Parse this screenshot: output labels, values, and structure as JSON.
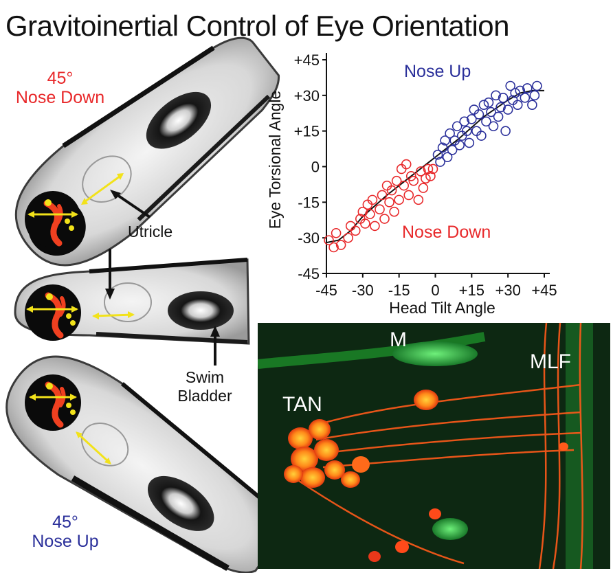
{
  "title": "Gravitoinertial Control of Eye Orientation",
  "fish_panels": {
    "top": {
      "line1": "45°",
      "line2": "Nose Down",
      "color": "#e8282a"
    },
    "bottom": {
      "line1": "45°",
      "line2": "Nose Up",
      "color": "#2a2f9a"
    },
    "utricle_label": "Utricle",
    "swim_bladder_label_1": "Swim",
    "swim_bladder_label_2": "Bladder"
  },
  "chart_data": {
    "type": "scatter",
    "xlabel": "Head Tilt Angle",
    "ylabel": "Eye Torsional Angle",
    "xlim": [
      -45,
      45
    ],
    "ylim": [
      -45,
      45
    ],
    "x_ticks": [
      "-45",
      "-30",
      "-15",
      "0",
      "+15",
      "+30",
      "+45"
    ],
    "y_ticks": [
      "+45",
      "+30",
      "+15",
      "0",
      "-15",
      "-30",
      "-45"
    ],
    "annotations": {
      "nose_up": "Nose Up",
      "nose_down": "Nose Down"
    },
    "series": [
      {
        "name": "Nose Down",
        "color": "#e8282a",
        "points": [
          [
            -44,
            -31
          ],
          [
            -42,
            -34
          ],
          [
            -41,
            -28
          ],
          [
            -39,
            -33
          ],
          [
            -36,
            -30
          ],
          [
            -35,
            -25
          ],
          [
            -33,
            -27
          ],
          [
            -31,
            -22
          ],
          [
            -30,
            -19
          ],
          [
            -29,
            -24
          ],
          [
            -28,
            -16
          ],
          [
            -27,
            -20
          ],
          [
            -26,
            -14
          ],
          [
            -25,
            -25
          ],
          [
            -23,
            -18
          ],
          [
            -22,
            -12
          ],
          [
            -21,
            -22
          ],
          [
            -20,
            -8
          ],
          [
            -19,
            -15
          ],
          [
            -18,
            -10
          ],
          [
            -17,
            -19
          ],
          [
            -16,
            -6
          ],
          [
            -15,
            -14
          ],
          [
            -14,
            -1
          ],
          [
            -13,
            -8
          ],
          [
            -12,
            1
          ],
          [
            -11,
            -12
          ],
          [
            -10,
            -4
          ],
          [
            -9,
            -6
          ],
          [
            -7,
            -14
          ],
          [
            -6,
            -2
          ],
          [
            -5,
            -9
          ],
          [
            -4,
            -5
          ],
          [
            -3,
            -1
          ],
          [
            -2,
            -4
          ],
          [
            -1,
            -1
          ]
        ]
      },
      {
        "name": "Nose Up",
        "color": "#2a2f9a",
        "points": [
          [
            1,
            5
          ],
          [
            2,
            2
          ],
          [
            3,
            8
          ],
          [
            4,
            11
          ],
          [
            5,
            4
          ],
          [
            6,
            14
          ],
          [
            7,
            7
          ],
          [
            8,
            11
          ],
          [
            9,
            17
          ],
          [
            10,
            9
          ],
          [
            11,
            13
          ],
          [
            12,
            19
          ],
          [
            13,
            15
          ],
          [
            14,
            10
          ],
          [
            15,
            20
          ],
          [
            16,
            24
          ],
          [
            17,
            15
          ],
          [
            18,
            22
          ],
          [
            19,
            13
          ],
          [
            20,
            26
          ],
          [
            21,
            19
          ],
          [
            22,
            27
          ],
          [
            23,
            23
          ],
          [
            24,
            17
          ],
          [
            25,
            30
          ],
          [
            26,
            21
          ],
          [
            27,
            25
          ],
          [
            28,
            29
          ],
          [
            29,
            15
          ],
          [
            30,
            24
          ],
          [
            31,
            34
          ],
          [
            32,
            28
          ],
          [
            33,
            31
          ],
          [
            34,
            26
          ],
          [
            35,
            32
          ],
          [
            37,
            29
          ],
          [
            38,
            33
          ],
          [
            40,
            26
          ],
          [
            41,
            30
          ],
          [
            42,
            34
          ]
        ]
      }
    ],
    "fit_curve": [
      [
        -45,
        -32
      ],
      [
        -40,
        -31
      ],
      [
        -35,
        -27
      ],
      [
        -30,
        -21
      ],
      [
        -20,
        -12
      ],
      [
        -10,
        -4
      ],
      [
        0,
        4
      ],
      [
        10,
        12
      ],
      [
        20,
        21
      ],
      [
        30,
        28
      ],
      [
        35,
        31
      ],
      [
        40,
        32
      ],
      [
        45,
        32
      ]
    ]
  },
  "micrograph": {
    "label_m": "M",
    "label_mlf": "MLF",
    "label_tan": "TAN"
  }
}
